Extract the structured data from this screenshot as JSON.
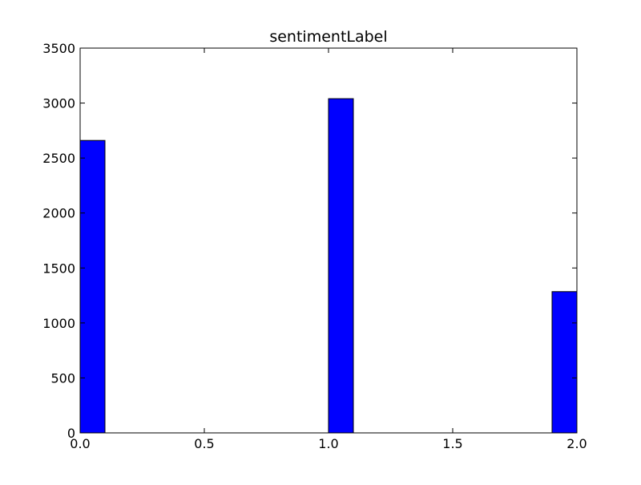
{
  "chart_data": {
    "type": "bar",
    "title": "sentimentLabel",
    "xlabel": "",
    "ylabel": "",
    "xlim": [
      0.0,
      2.0
    ],
    "ylim": [
      0,
      3500
    ],
    "bin_width": 0.1,
    "bars": [
      {
        "x_start": 0.0,
        "x_end": 0.1,
        "value": 2660
      },
      {
        "x_start": 1.0,
        "x_end": 1.1,
        "value": 3040
      },
      {
        "x_start": 1.9,
        "x_end": 2.0,
        "value": 1285
      }
    ],
    "x_ticks": [
      "0.0",
      "0.5",
      "1.0",
      "1.5",
      "2.0"
    ],
    "x_tick_values": [
      0.0,
      0.5,
      1.0,
      1.5,
      2.0
    ],
    "y_ticks": [
      "0",
      "500",
      "1000",
      "1500",
      "2000",
      "2500",
      "3000",
      "3500"
    ],
    "y_tick_values": [
      0,
      500,
      1000,
      1500,
      2000,
      2500,
      3000,
      3500
    ],
    "bar_color": "#0000ff",
    "edge_color": "#000000",
    "grid": false,
    "legend": "none"
  }
}
